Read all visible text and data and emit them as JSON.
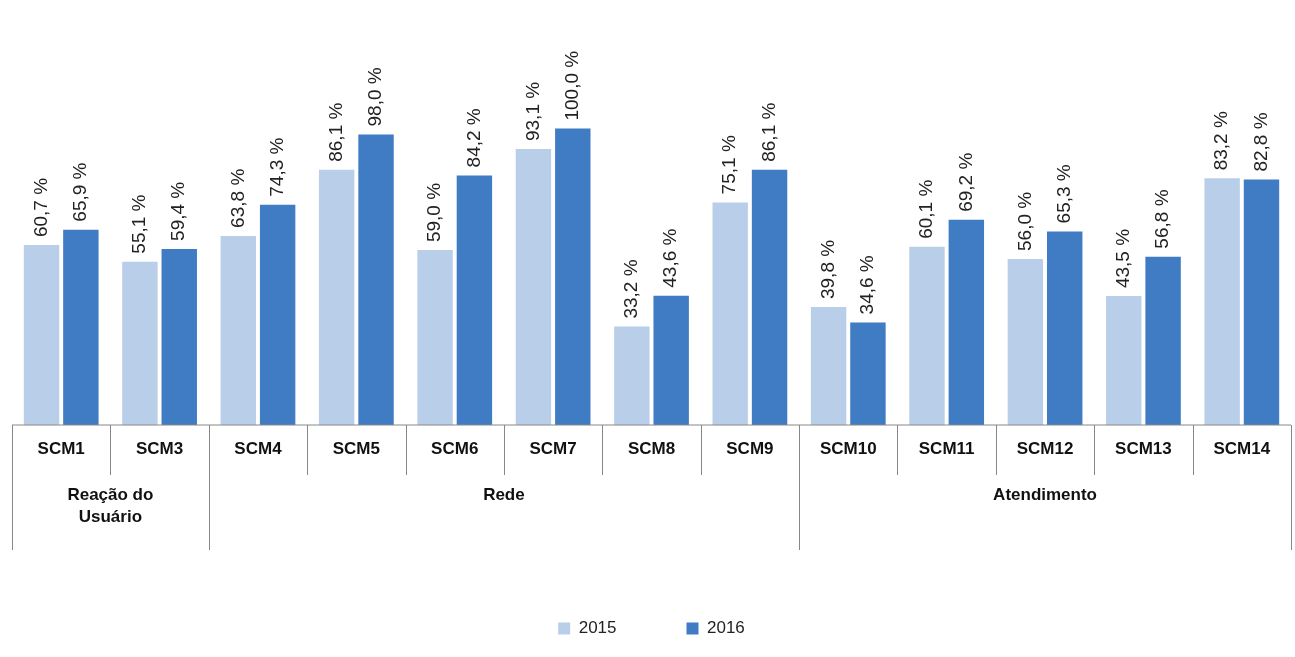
{
  "chart_data": {
    "type": "bar",
    "categories": [
      "SCM1",
      "SCM3",
      "SCM4",
      "SCM5",
      "SCM6",
      "SCM7",
      "SCM8",
      "SCM9",
      "SCM10",
      "SCM11",
      "SCM12",
      "SCM13",
      "SCM14"
    ],
    "series": [
      {
        "name": "2015",
        "color": "#b9cfe9",
        "values": [
          60.7,
          55.1,
          63.8,
          86.1,
          59.0,
          93.1,
          33.2,
          75.1,
          39.8,
          60.1,
          56.0,
          43.5,
          83.2
        ],
        "value_labels": [
          "60,7 %",
          "55,1 %",
          "63,8 %",
          "86,1 %",
          "59,0 %",
          "93,1 %",
          "33,2 %",
          "75,1 %",
          "39,8 %",
          "60,1 %",
          "56,0 %",
          "43,5 %",
          "83,2 %"
        ]
      },
      {
        "name": "2016",
        "color": "#3f7cc4",
        "values": [
          65.9,
          59.4,
          74.3,
          98.0,
          84.2,
          100.0,
          43.6,
          86.1,
          34.6,
          69.2,
          65.3,
          56.8,
          82.8
        ],
        "value_labels": [
          "65,9 %",
          "59,4 %",
          "74,3 %",
          "98,0 %",
          "84,2 %",
          "100,0 %",
          "43,6 %",
          "86,1 %",
          "34,6 %",
          "69,2 %",
          "65,3 %",
          "56,8 %",
          "82,8 %"
        ]
      }
    ],
    "annotations": [
      "Reação do\nUsuário",
      "Rede",
      "Atendimento"
    ],
    "legend": "bottom",
    "grid": false
  }
}
